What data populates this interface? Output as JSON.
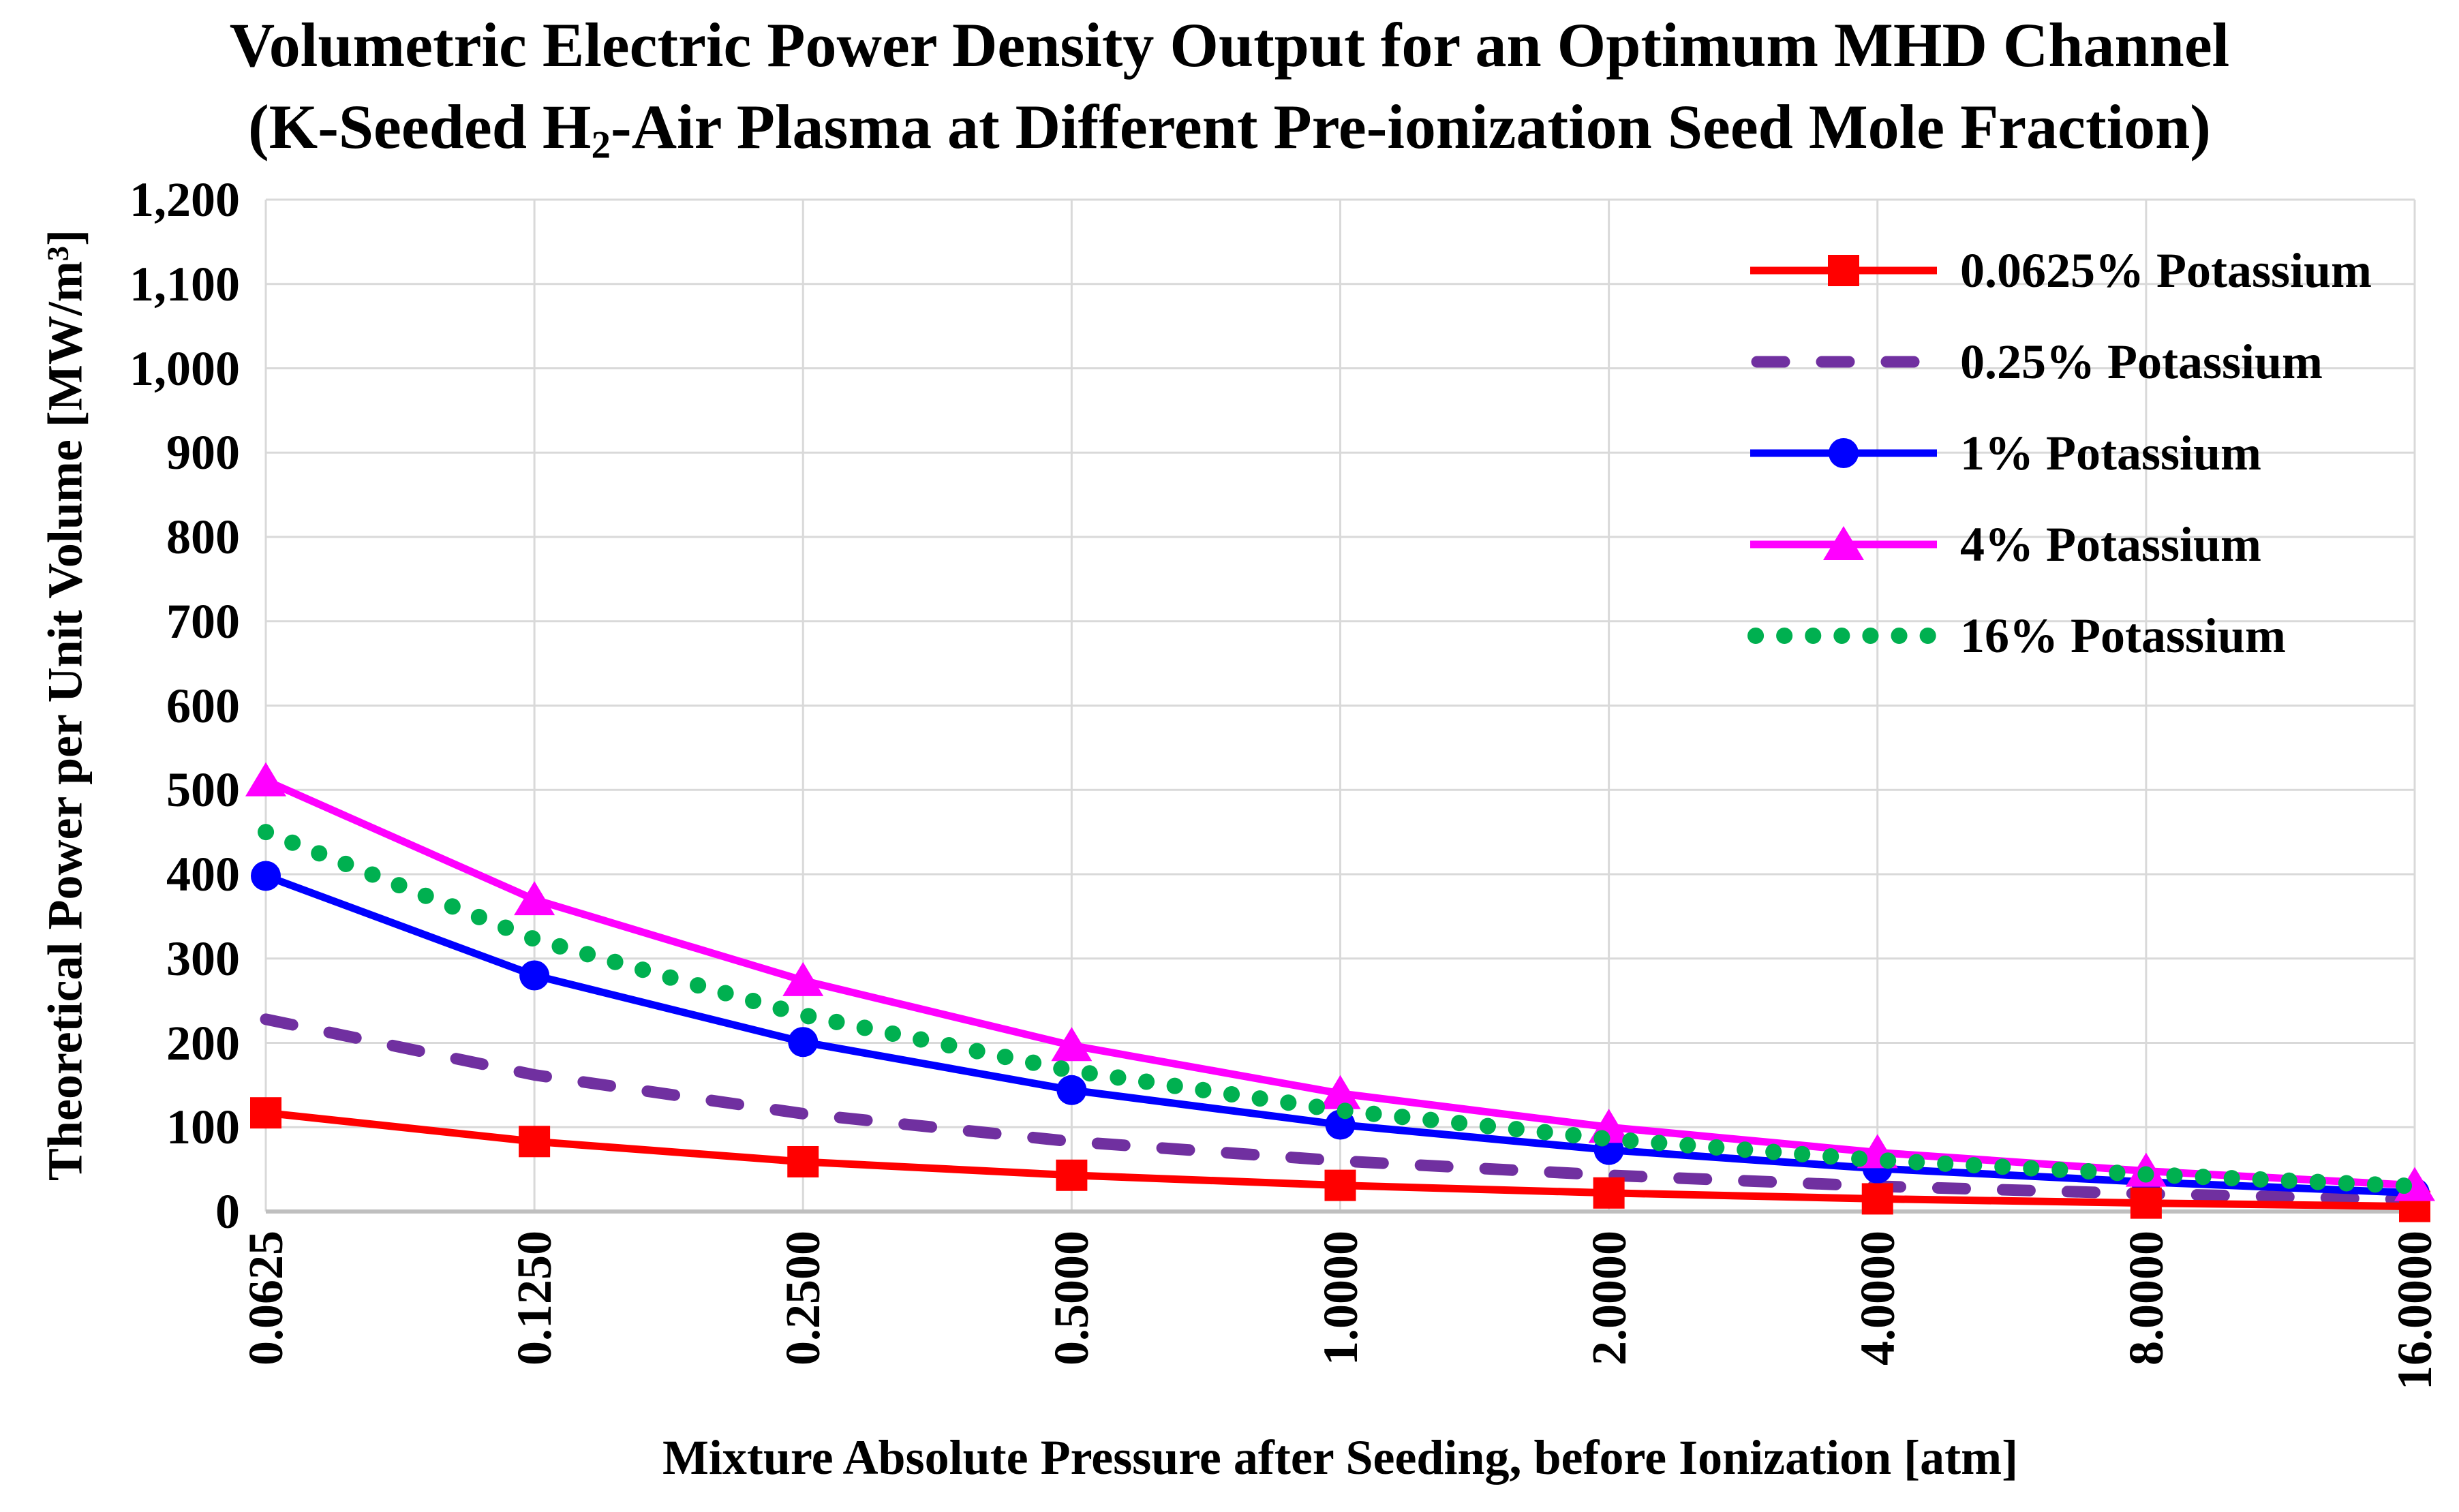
{
  "title": {
    "line1": "Volumetric Electric Power Density Output for an Optimum MHD Channel",
    "line2_pre": "(K-Seeded H",
    "line2_sub": "2",
    "line2_post": "-Air Plasma at Different Pre-ionization Seed Mole Fraction)"
  },
  "y_axis": {
    "title_pre": "Theoretical Power per Unit Volume [MW/m",
    "title_sup": "3",
    "title_post": "]",
    "tick_labels": [
      "0",
      "100",
      "200",
      "300",
      "400",
      "500",
      "600",
      "700",
      "800",
      "900",
      "1,000",
      "1,100",
      "1,200"
    ]
  },
  "x_axis": {
    "title": "Mixture Absolute Pressure after Seeding, before Ionization [atm]",
    "tick_labels": [
      "0.0625",
      "0.1250",
      "0.2500",
      "0.5000",
      "1.0000",
      "2.0000",
      "4.0000",
      "8.0000",
      "16.0000"
    ]
  },
  "chart_data": {
    "type": "line",
    "title": "Volumetric Electric Power Density Output for an Optimum MHD Channel (K-Seeded H2-Air Plasma at Different Pre-ionization Seed Mole Fraction)",
    "xlabel": "Mixture Absolute Pressure after Seeding, before Ionization [atm]",
    "ylabel": "Theoretical Power per Unit Volume [MW/m3]",
    "categories": [
      "0.0625",
      "0.1250",
      "0.2500",
      "0.5000",
      "1.0000",
      "2.0000",
      "4.0000",
      "8.0000",
      "16.0000"
    ],
    "ylim": [
      0,
      1200
    ],
    "y_step": 100,
    "grid": true,
    "grid_color": "#D9D9D9",
    "axis_color": "#BFBFBF",
    "legend_position": "inside-top-right",
    "draw_order": [
      1,
      2,
      0,
      3,
      4
    ],
    "series": [
      {
        "name": "0.0625% Potassium",
        "color": "#FF0000",
        "style": "solid",
        "marker": "square",
        "values": [
          117,
          83,
          59,
          43,
          31,
          22,
          15,
          10,
          6
        ]
      },
      {
        "name": "0.25% Potassium",
        "color": "#7030A0",
        "style": "dashed",
        "marker": "none",
        "values": [
          228,
          162,
          116,
          83,
          60,
          43,
          30,
          21,
          14
        ]
      },
      {
        "name": "1% Potassium",
        "color": "#0000FF",
        "style": "solid",
        "marker": "circle",
        "values": [
          398,
          280,
          201,
          144,
          103,
          73,
          51,
          35,
          22
        ]
      },
      {
        "name": "4% Potassium",
        "color": "#FF00FF",
        "style": "solid",
        "marker": "triangle",
        "values": [
          511,
          370,
          274,
          197,
          140,
          100,
          70,
          48,
          31
        ]
      },
      {
        "name": "16% Potassium",
        "color": "#00B050",
        "style": "dotted",
        "marker": "none",
        "values": [
          450,
          323,
          233,
          167,
          120,
          86,
          61,
          44,
          30
        ]
      }
    ]
  }
}
